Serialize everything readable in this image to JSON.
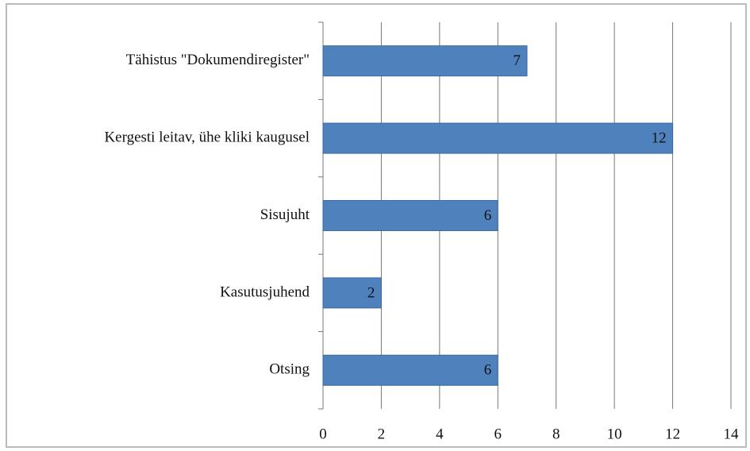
{
  "chart_data": {
    "type": "bar",
    "orientation": "horizontal",
    "categories": [
      "Tähistus \"Dokumendiregister\"",
      "Kergesti leitav, ühe kliki kaugusel",
      "Sisujuht",
      "Kasutusjuhend",
      "Otsing"
    ],
    "values": [
      7,
      12,
      6,
      2,
      6
    ],
    "color": "#4f81bd",
    "xlim": [
      0,
      14
    ],
    "xticks": [
      0,
      2,
      4,
      6,
      8,
      10,
      12,
      14
    ],
    "grid": true
  }
}
